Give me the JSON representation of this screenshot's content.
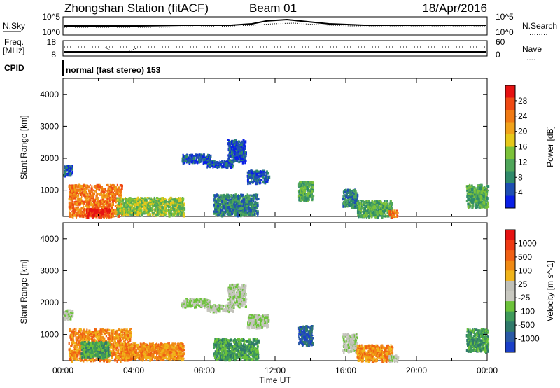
{
  "header": {
    "title": "Zhongshan Station (fitACF)",
    "beam": "Beam 01",
    "date": "18/Apr/2016"
  },
  "nsky_panel": {
    "left_label": "N.Sky",
    "left_ticks": [
      "10^5",
      "10^0"
    ],
    "right_ticks": [
      "10^5",
      "10^0"
    ],
    "right_label": "N.Search",
    "right_legend": "........"
  },
  "freq_panel": {
    "left_label_1": "Freq.",
    "left_label_2": "[MHz]",
    "left_ticks": [
      "18",
      "8"
    ],
    "right_ticks": [
      "60",
      "0"
    ],
    "right_label": "Nave",
    "right_legend": "...."
  },
  "cpid": {
    "label": "CPID",
    "text": "normal (fast stereo) 153"
  },
  "chart_data": [
    {
      "type": "heatmap",
      "title": "Power",
      "ylabel": "Slant Range [km]",
      "xlabel": "",
      "x_range_hours": [
        0,
        24
      ],
      "ylim": [
        180,
        4500
      ],
      "y_ticks": [
        1000,
        2000,
        3000,
        4000
      ],
      "colorbar": {
        "label": "Power [dB]",
        "ticks": [
          "4",
          "8",
          "12",
          "16",
          "20",
          "24",
          "28"
        ],
        "colors": [
          "#0a1fe6",
          "#1e4fb2",
          "#2f8a6a",
          "#4fa65a",
          "#7cc23a",
          "#e6c81a",
          "#f0a21a",
          "#f07a14",
          "#ef4a14",
          "#e61212"
        ]
      },
      "patches": [
        {
          "t0": 0.3,
          "t1": 3.3,
          "r0": 200,
          "r1": 1200,
          "level": 7
        },
        {
          "t0": 1.3,
          "t1": 2.6,
          "r0": 200,
          "r1": 450,
          "level": 9
        },
        {
          "t0": 3.0,
          "t1": 6.8,
          "r0": 250,
          "r1": 800,
          "level": 4
        },
        {
          "t0": 0.0,
          "t1": 0.5,
          "r0": 1500,
          "r1": 1800,
          "level": 1
        },
        {
          "t0": 6.7,
          "t1": 8.3,
          "r0": 1900,
          "r1": 2150,
          "level": 1
        },
        {
          "t0": 8.1,
          "t1": 9.6,
          "r0": 1750,
          "r1": 1950,
          "level": 1
        },
        {
          "t0": 9.3,
          "t1": 10.3,
          "r0": 1900,
          "r1": 2600,
          "level": 1
        },
        {
          "t0": 10.4,
          "t1": 11.6,
          "r0": 1250,
          "r1": 1650,
          "level": 1
        },
        {
          "t0": 8.5,
          "t1": 11.0,
          "r0": 250,
          "r1": 900,
          "level": 2
        },
        {
          "t0": 13.3,
          "t1": 14.1,
          "r0": 700,
          "r1": 1300,
          "level": 3
        },
        {
          "t0": 15.8,
          "t1": 16.6,
          "r0": 500,
          "r1": 1050,
          "level": 2
        },
        {
          "t0": 16.6,
          "t1": 18.6,
          "r0": 200,
          "r1": 700,
          "level": 3
        },
        {
          "t0": 18.4,
          "t1": 18.9,
          "r0": 200,
          "r1": 400,
          "level": 7
        },
        {
          "t0": 22.8,
          "t1": 24.0,
          "r0": 500,
          "r1": 1200,
          "level": 3
        }
      ]
    },
    {
      "type": "heatmap",
      "title": "Velocity",
      "ylabel": "Slant Range [km]",
      "xlabel": "Time UT",
      "x_ticks": [
        "00:00",
        "04:00",
        "08:00",
        "12:00",
        "16:00",
        "20:00",
        "00:00"
      ],
      "x_range_hours": [
        0,
        24
      ],
      "ylim": [
        180,
        4500
      ],
      "y_ticks": [
        1000,
        2000,
        3000,
        4000
      ],
      "colorbar": {
        "label": "Velocity [m s^-1]",
        "ticks": [
          "1000",
          "500",
          "100",
          "25",
          "-25",
          "-100",
          "-500",
          "-1000"
        ],
        "colors": [
          "#1a3fc8",
          "#2a5aa6",
          "#2f7a6a",
          "#3f9a5a",
          "#6cc23a",
          "#c8c8c0",
          "#c0c0b8",
          "#f0b41a",
          "#f08a14",
          "#f06014",
          "#ef3a14",
          "#e61212"
        ]
      },
      "patches": [
        {
          "t0": 0.3,
          "t1": 3.8,
          "r0": 200,
          "r1": 1200,
          "level": 8
        },
        {
          "t0": 1.0,
          "t1": 2.6,
          "r0": 300,
          "r1": 800,
          "level": 3
        },
        {
          "t0": 3.2,
          "t1": 6.8,
          "r0": 250,
          "r1": 750,
          "level": 8
        },
        {
          "t0": 0.0,
          "t1": 0.5,
          "r0": 1500,
          "r1": 1800,
          "level": 5
        },
        {
          "t0": 6.7,
          "t1": 8.3,
          "r0": 1900,
          "r1": 2150,
          "level": 5
        },
        {
          "t0": 8.1,
          "t1": 9.6,
          "r0": 1750,
          "r1": 1950,
          "level": 5
        },
        {
          "t0": 9.3,
          "t1": 10.3,
          "r0": 1900,
          "r1": 2600,
          "level": 5
        },
        {
          "t0": 10.4,
          "t1": 11.6,
          "r0": 1250,
          "r1": 1650,
          "level": 5
        },
        {
          "t0": 8.5,
          "t1": 11.0,
          "r0": 250,
          "r1": 900,
          "level": 3
        },
        {
          "t0": 13.3,
          "t1": 14.1,
          "r0": 700,
          "r1": 1300,
          "level": 1
        },
        {
          "t0": 15.8,
          "t1": 16.6,
          "r0": 500,
          "r1": 1050,
          "level": 5
        },
        {
          "t0": 16.6,
          "t1": 18.6,
          "r0": 200,
          "r1": 700,
          "level": 8
        },
        {
          "t0": 18.4,
          "t1": 18.9,
          "r0": 200,
          "r1": 400,
          "level": 5
        },
        {
          "t0": 22.8,
          "t1": 24.0,
          "r0": 500,
          "r1": 1200,
          "level": 3
        }
      ]
    }
  ]
}
